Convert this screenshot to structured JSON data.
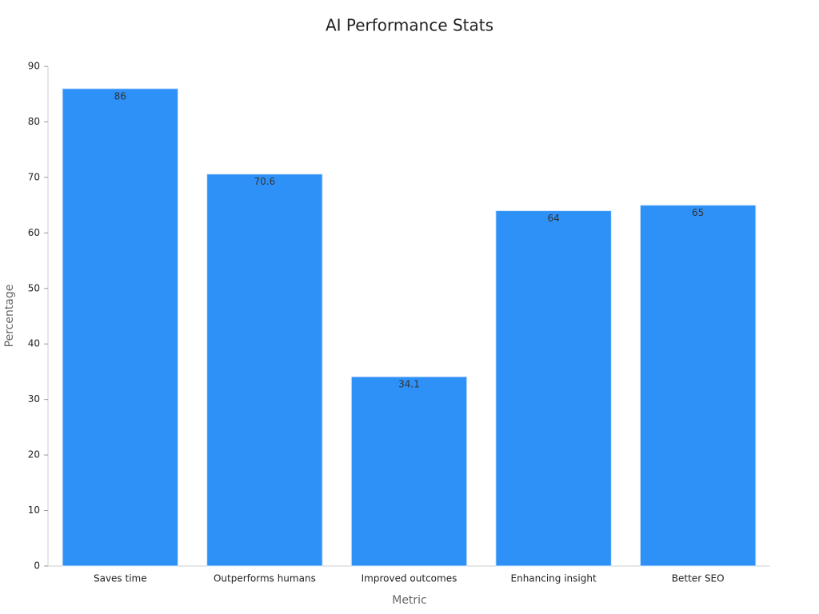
{
  "chart_data": {
    "type": "bar",
    "title": "AI Performance Stats",
    "x_label": "Metric",
    "y_label": "Percentage",
    "categories": [
      "Saves time",
      "Outperforms humans",
      "Improved outcomes",
      "Enhancing insight",
      "Better SEO"
    ],
    "values": [
      86,
      70.6,
      34.1,
      64,
      65
    ],
    "color": "#2e91f7",
    "ylim": [
      0,
      90
    ],
    "yticks": [
      0,
      10,
      20,
      30,
      40,
      50,
      60,
      70,
      80,
      90
    ],
    "grid": false
  }
}
